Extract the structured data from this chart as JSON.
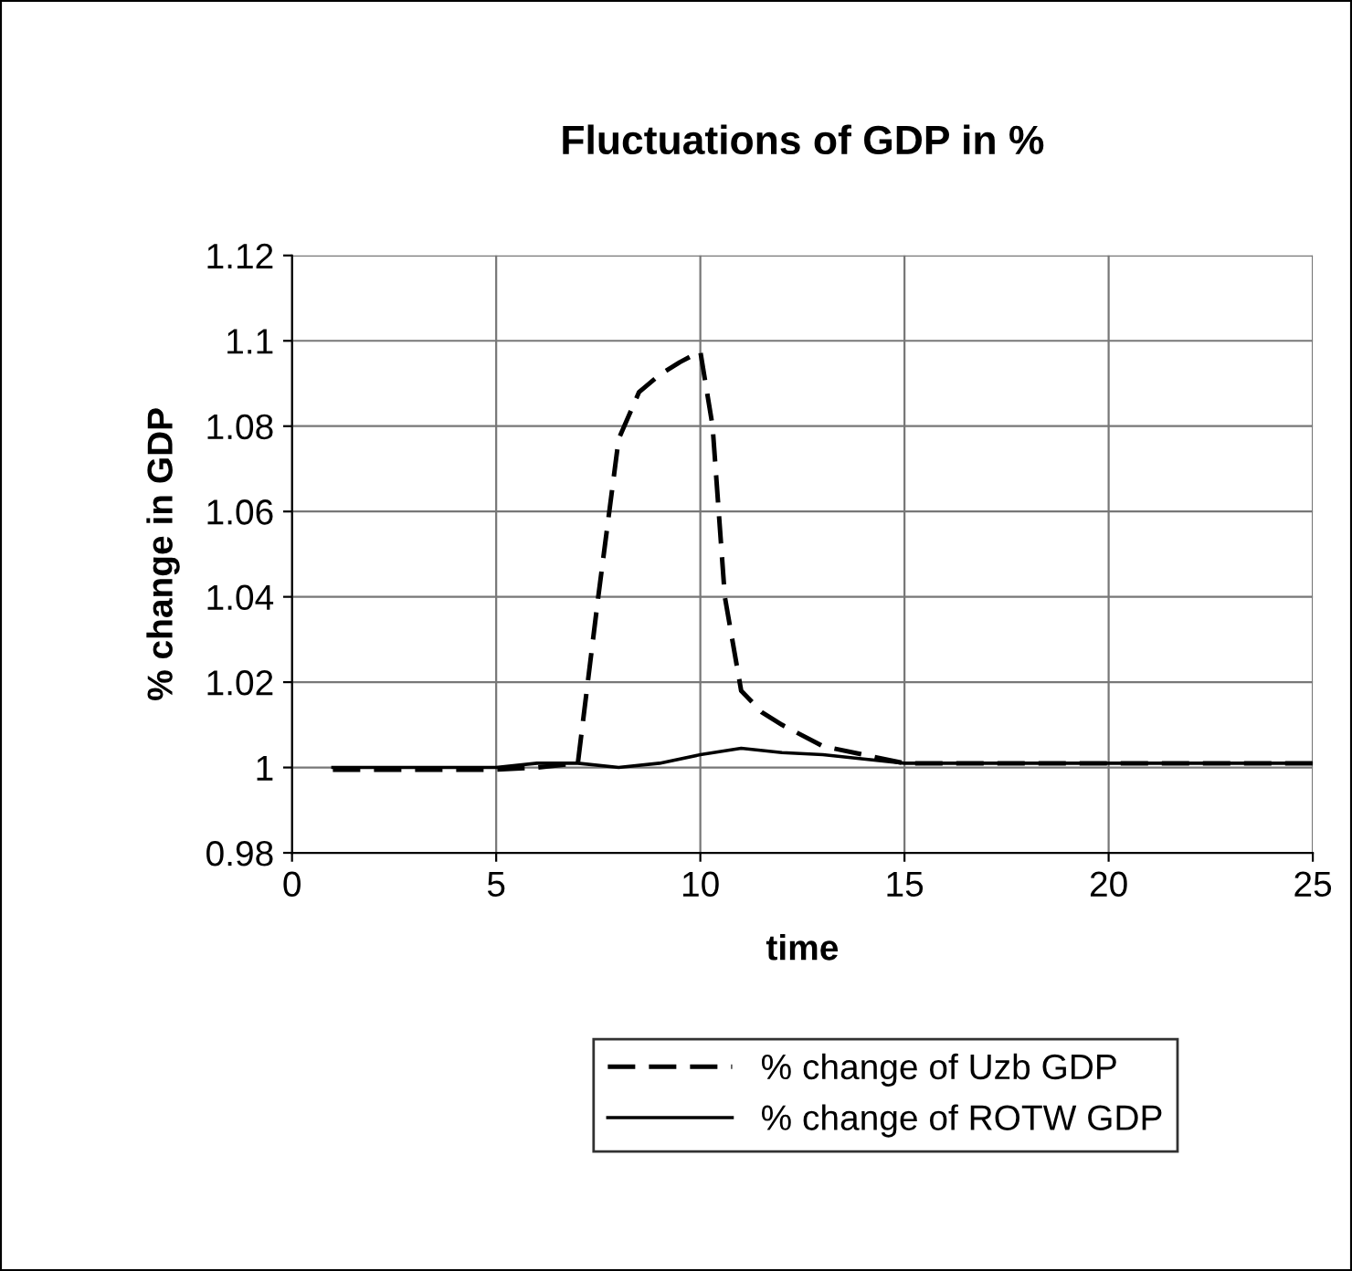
{
  "chart_data": {
    "type": "line",
    "title": "Fluctuations of GDP in %",
    "xlabel": "time",
    "ylabel": "% change in GDP",
    "xlim": [
      0,
      25
    ],
    "xticks": [
      0,
      5,
      10,
      15,
      20,
      25
    ],
    "ylim": [
      0.98,
      1.12
    ],
    "yticks": [
      0.98,
      1,
      1.02,
      1.04,
      1.06,
      1.08,
      1.1,
      1.12
    ],
    "grid": true,
    "legend": "bottom",
    "marker": "none",
    "series": [
      {
        "name": "% change of Uzb GDP",
        "color": "#000000",
        "line_style": "dashed",
        "x": [
          1,
          2,
          3,
          4,
          5,
          6,
          7,
          7.5,
          8,
          8.5,
          9,
          9.5,
          10,
          10.3,
          10.6,
          11,
          11.5,
          12,
          13,
          14,
          15,
          16,
          17,
          18,
          19,
          20,
          21,
          22,
          23,
          24,
          25
        ],
        "values": [
          0.9995,
          0.9995,
          0.9995,
          0.9995,
          0.9995,
          1.0,
          1.001,
          1.04,
          1.077,
          1.088,
          1.092,
          1.095,
          1.0975,
          1.08,
          1.04,
          1.018,
          1.013,
          1.01,
          1.005,
          1.003,
          1.001,
          1.001,
          1.001,
          1.001,
          1.001,
          1.001,
          1.001,
          1.001,
          1.001,
          1.001,
          1.001
        ]
      },
      {
        "name": "% change of ROTW GDP",
        "color": "#000000",
        "line_style": "solid",
        "x": [
          1,
          2,
          3,
          4,
          5,
          6,
          7,
          8,
          9,
          10,
          11,
          12,
          13,
          14,
          15,
          16,
          17,
          18,
          19,
          20,
          21,
          22,
          23,
          24,
          25
        ],
        "values": [
          1.0,
          1.0,
          1.0,
          1.0,
          1.0,
          1.001,
          1.001,
          1.0,
          1.001,
          1.003,
          1.0045,
          1.0035,
          1.003,
          1.002,
          1.001,
          1.001,
          1.001,
          1.001,
          1.001,
          1.001,
          1.001,
          1.001,
          1.001,
          1.001,
          1.001
        ]
      }
    ]
  }
}
